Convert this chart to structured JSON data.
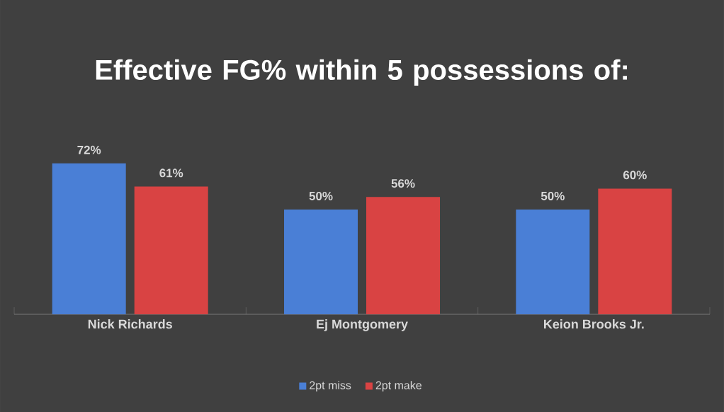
{
  "chart_data": {
    "type": "bar",
    "title": "Effective FG% within 5 possessions of:",
    "categories": [
      "Nick Richards",
      "Ej Montgomery",
      "Keion Brooks Jr."
    ],
    "series": [
      {
        "name": "2pt miss",
        "color": "#4a7fd6",
        "values": [
          72,
          50,
          50
        ],
        "value_labels": [
          "72%",
          "50%",
          "50%"
        ]
      },
      {
        "name": "2pt make",
        "color": "#d94343",
        "values": [
          61,
          56,
          60
        ],
        "value_labels": [
          "61%",
          "56%",
          "60%"
        ]
      }
    ],
    "legend": "bottom"
  }
}
